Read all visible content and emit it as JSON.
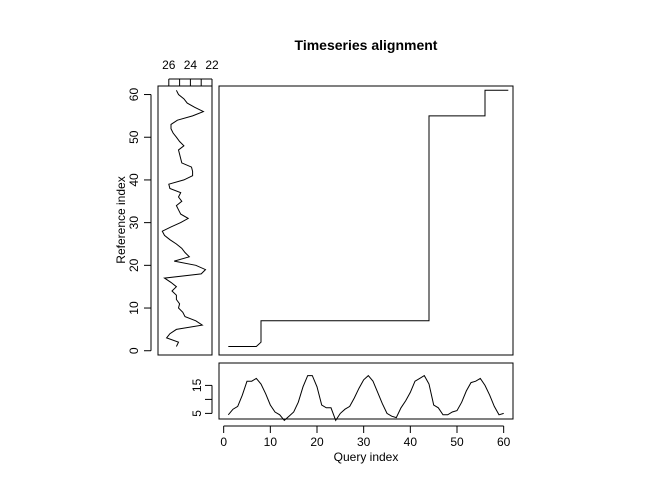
{
  "chart_data": {
    "type": "line",
    "title": "Timeseries alignment",
    "xlabel": "Query index",
    "ylabel": "Reference index",
    "grid": false,
    "panels": {
      "alignment": {
        "type": "line",
        "xlim": [
          -1,
          62
        ],
        "ylim": [
          -1,
          62
        ],
        "path": [
          [
            1,
            1
          ],
          [
            7,
            1
          ],
          [
            8,
            2
          ],
          [
            8,
            7
          ],
          [
            44,
            7
          ],
          [
            44,
            55
          ],
          [
            56,
            55
          ],
          [
            56,
            61
          ],
          [
            61,
            61
          ]
        ]
      },
      "reference": {
        "type": "line",
        "orientation": "vertical",
        "xlabel_ticks_reversed": true,
        "xlim": [
          22,
          27
        ],
        "ylim": [
          -1,
          62
        ],
        "x_ticks": [
          "26",
          "24",
          "22"
        ],
        "y_ticks": [
          "0",
          "10",
          "20",
          "30",
          "40",
          "50",
          "60"
        ],
        "values": [
          25.3,
          25.1,
          26.2,
          25.9,
          25.3,
          22.9,
          23.5,
          24.5,
          24.7,
          25.1,
          25.0,
          25.3,
          25.3,
          25.7,
          25.3,
          25.8,
          26.4,
          23.0,
          22.6,
          23.5,
          25.5,
          24.1,
          24.5,
          24.8,
          25.3,
          25.9,
          26.4,
          26.6,
          25.8,
          24.9,
          24.2,
          24.9,
          25.1,
          25.3,
          24.8,
          25.1,
          24.9,
          25.9,
          26.0,
          24.6,
          23.8,
          23.8,
          23.9,
          24.8,
          24.9,
          25.0,
          25.1,
          24.6,
          25.0,
          25.3,
          25.6,
          25.8,
          25.8,
          25.2,
          23.8,
          22.8,
          23.6,
          24.3,
          24.6,
          25.1,
          25.3
        ]
      },
      "query": {
        "type": "line",
        "xlim": [
          -1,
          62
        ],
        "ylim": [
          3,
          23
        ],
        "y_ticks": [
          "5",
          "10",
          "15"
        ],
        "x_ticks": [
          "0",
          "10",
          "20",
          "30",
          "40",
          "50",
          "60"
        ],
        "values": [
          4.5,
          6.5,
          7.5,
          11.5,
          16.5,
          16.5,
          17.5,
          15.5,
          12.0,
          8.0,
          5.5,
          4.5,
          2.5,
          4.0,
          5.5,
          9.0,
          14.5,
          18.5,
          18.5,
          14.5,
          8.0,
          7.0,
          7.0,
          2.5,
          5.0,
          6.5,
          7.5,
          10.5,
          14.0,
          17.0,
          18.5,
          16.5,
          12.5,
          8.5,
          5.0,
          4.0,
          3.5,
          7.0,
          9.5,
          12.5,
          16.5,
          17.5,
          18.5,
          15.5,
          8.0,
          7.0,
          4.5,
          4.5,
          5.5,
          6.0,
          9.0,
          13.0,
          16.0,
          16.5,
          17.5,
          15.0,
          11.5,
          7.5,
          4.5,
          5.0
        ]
      }
    }
  }
}
